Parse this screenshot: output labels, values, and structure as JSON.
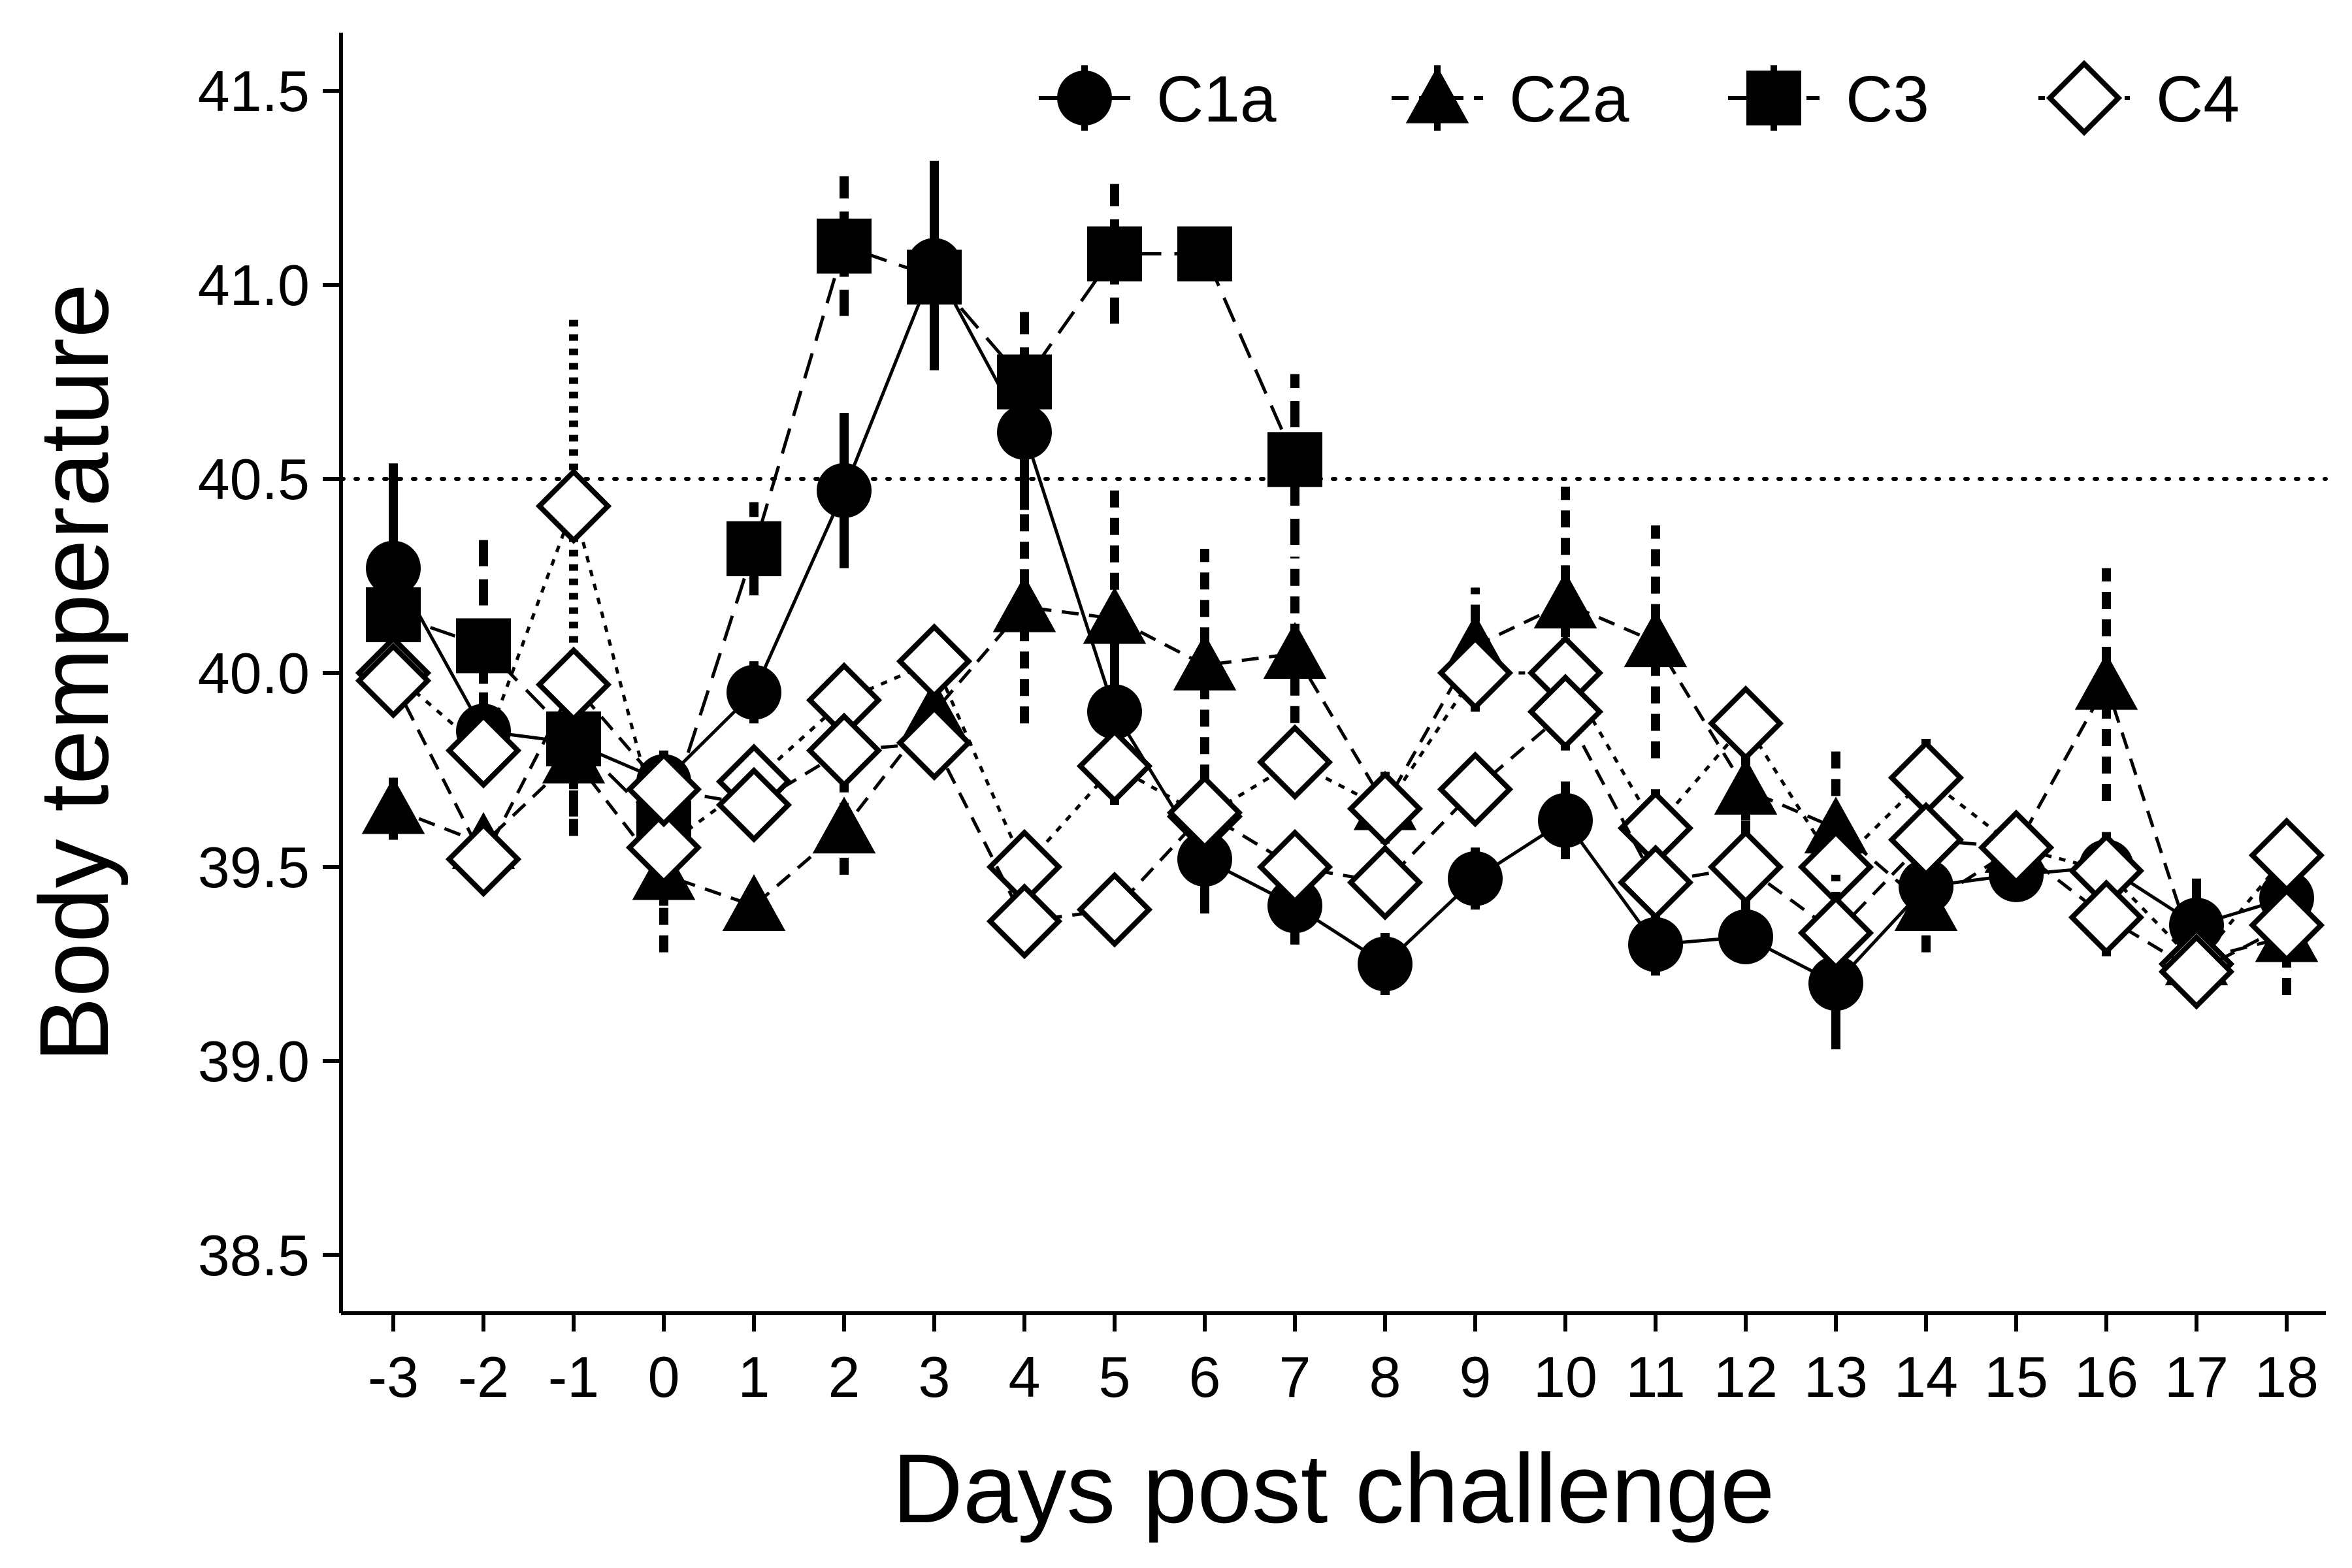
{
  "chart_data": {
    "type": "line",
    "xlabel": "Days post challenge",
    "ylabel": "Body temperature",
    "x": [
      -3,
      -2,
      -1,
      0,
      1,
      2,
      3,
      4,
      5,
      6,
      7,
      8,
      9,
      10,
      11,
      12,
      13,
      14,
      15,
      16,
      17,
      18
    ],
    "x_tick_labels": [
      "-3",
      "-2",
      "-1",
      "0",
      "1",
      "2",
      "3",
      "4",
      "5",
      "6",
      "7",
      "8",
      "9",
      "10",
      "11",
      "12",
      "13",
      "14",
      "15",
      "16",
      "17",
      "18"
    ],
    "ylim": [
      38.35,
      41.65
    ],
    "y_ticks": [
      38.5,
      39.0,
      39.5,
      40.0,
      40.5,
      41.0,
      41.5
    ],
    "y_tick_labels": [
      "38.5",
      "39.0",
      "39.5",
      "40.0",
      "40.5",
      "41.0",
      "41.5"
    ],
    "reference_line": {
      "y": 40.5,
      "style": "dotted"
    },
    "grid": false,
    "legend_position": "top-right",
    "series": [
      {
        "name": "C1a",
        "marker": "filled-circle",
        "line": "solid",
        "x": [
          -3,
          -2,
          -1,
          0,
          1,
          2,
          3,
          4,
          5,
          6,
          7,
          8,
          9,
          10,
          11,
          12,
          13,
          14,
          15,
          16,
          17,
          18
        ],
        "y": [
          40.27,
          39.85,
          39.82,
          39.72,
          39.95,
          40.47,
          41.05,
          40.62,
          39.9,
          39.52,
          39.4,
          39.25,
          39.47,
          39.62,
          39.3,
          39.32,
          39.2,
          39.45,
          39.48,
          39.5,
          39.35,
          39.42
        ],
        "err": [
          0.27,
          0.1,
          0.12,
          0.08,
          0.08,
          0.2,
          0.27,
          0.2,
          0.22,
          0.14,
          0.1,
          0.08,
          0.08,
          0.1,
          0.08,
          0.06,
          0.17,
          0.1,
          0.06,
          0.08,
          0.12,
          0.1
        ]
      },
      {
        "name": "C2a",
        "marker": "filled-triangle",
        "line": "dashed",
        "x": [
          -3,
          -2,
          -1,
          0,
          1,
          2,
          3,
          4,
          5,
          6,
          7,
          8,
          9,
          10,
          11,
          12,
          13,
          14,
          15,
          16,
          17,
          18
        ],
        "y": [
          39.65,
          39.56,
          39.78,
          39.48,
          39.4,
          39.6,
          39.9,
          40.17,
          40.14,
          40.02,
          40.05,
          39.66,
          40.07,
          40.18,
          40.08,
          39.7,
          39.6,
          39.4,
          39.55,
          39.97,
          39.26,
          39.32
        ],
        "err": [
          0.08,
          0.06,
          0.2,
          0.2,
          0.04,
          0.12,
          0.1,
          0.3,
          0.35,
          0.3,
          0.25,
          0.1,
          0.15,
          0.3,
          0.3,
          0.15,
          0.2,
          0.12,
          0.1,
          0.3,
          0.1,
          0.15
        ]
      },
      {
        "name": "C3",
        "marker": "filled-square",
        "line": "long-dash",
        "x": [
          -3,
          -2,
          -1,
          0,
          1,
          2,
          3,
          4,
          5,
          6,
          7
        ],
        "y": [
          40.15,
          40.07,
          39.83,
          39.6,
          40.32,
          41.1,
          41.02,
          40.75,
          41.08,
          41.08,
          40.55
        ],
        "err": [
          0.1,
          0.3,
          0.2,
          0.2,
          0.12,
          0.18,
          0.12,
          0.18,
          0.18,
          0.04,
          0.22
        ]
      },
      {
        "name": "C4",
        "marker": "open-diamond",
        "line": "dotted",
        "x": [
          -3,
          -2,
          -1,
          0,
          1,
          2,
          3,
          4,
          5,
          6,
          7,
          8,
          9,
          10,
          11,
          12,
          13,
          14,
          15,
          16,
          17,
          18
        ],
        "y": [
          40.0,
          39.8,
          40.43,
          39.55,
          39.72,
          39.93,
          40.03,
          39.5,
          39.76,
          39.63,
          39.77,
          39.65,
          40.0,
          40.0,
          39.6,
          39.87,
          39.5,
          39.73,
          39.55,
          39.49,
          39.25,
          39.53
        ],
        "err": [
          0.05,
          0.06,
          0.5,
          0.06,
          0.06,
          0.06,
          0.08,
          0.06,
          0.1,
          0.06,
          0.08,
          0.06,
          0.1,
          0.15,
          0.1,
          0.06,
          0.1,
          0.1,
          0.06,
          0.1,
          0.1,
          0.06
        ]
      },
      {
        "name": "",
        "marker": "open-diamond",
        "line": "dashed",
        "x": [
          -3,
          -2,
          -1,
          0,
          1,
          2,
          3,
          4,
          5,
          6,
          7,
          8,
          9,
          10,
          11,
          12,
          13,
          14,
          15,
          16,
          17,
          18
        ],
        "y": [
          39.98,
          39.52,
          39.97,
          39.7,
          39.66,
          39.8,
          39.82,
          39.36,
          39.39,
          39.64,
          39.5,
          39.46,
          39.7,
          39.9,
          39.46,
          39.5,
          39.33,
          39.57,
          39.55,
          39.37,
          39.23,
          39.35
        ],
        "err": [
          0.04,
          0.06,
          0.06,
          0.06,
          0.06,
          0.06,
          0.06,
          0.05,
          0.05,
          0.06,
          0.06,
          0.08,
          0.08,
          0.1,
          0.08,
          0.12,
          0.15,
          0.1,
          0.06,
          0.1,
          0.06,
          0.06
        ]
      }
    ],
    "legend_entries": [
      "C1a",
      "C2a",
      "C3",
      "C4"
    ]
  }
}
